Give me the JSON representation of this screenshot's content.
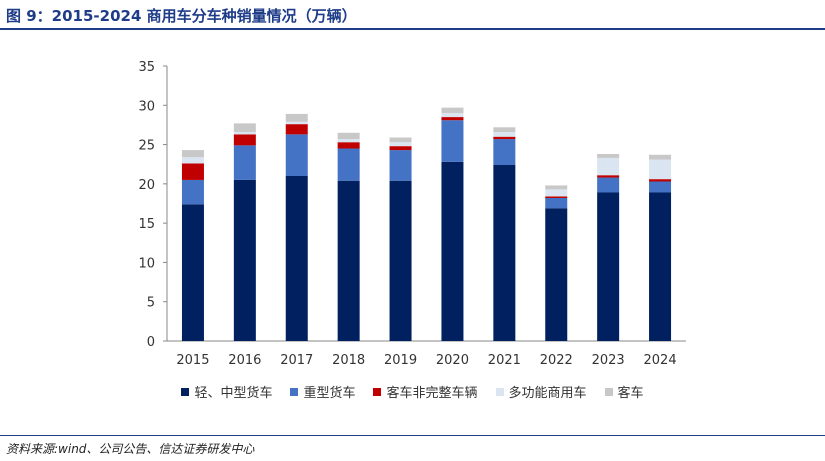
{
  "title": "图 9：2015-2024 商用车分车种销量情况（万辆）",
  "source": "资料来源:wind、公司公告、信达证券研发中心",
  "chart_data": {
    "type": "bar",
    "stacked": true,
    "title": "",
    "xlabel": "",
    "ylabel": "",
    "ylim": [
      0,
      35
    ],
    "yticks": [
      0,
      5,
      10,
      15,
      20,
      25,
      30,
      35
    ],
    "grid": false,
    "legend_position": "bottom",
    "categories": [
      "2015",
      "2016",
      "2017",
      "2018",
      "2019",
      "2020",
      "2021",
      "2022",
      "2023",
      "2024"
    ],
    "series": [
      {
        "name": "轻、中型货车",
        "color": "#002060",
        "values": [
          17.4,
          20.5,
          21.0,
          20.4,
          20.4,
          22.8,
          22.4,
          16.9,
          18.9,
          18.9
        ]
      },
      {
        "name": "重型货车",
        "color": "#4472c4",
        "values": [
          3.1,
          4.4,
          5.3,
          4.1,
          3.9,
          5.3,
          3.3,
          1.3,
          1.9,
          1.4
        ]
      },
      {
        "name": "客车非完整车辆",
        "color": "#c00000",
        "values": [
          2.1,
          1.4,
          1.3,
          0.8,
          0.5,
          0.4,
          0.3,
          0.2,
          0.3,
          0.3
        ]
      },
      {
        "name": "多功能商用车",
        "color": "#dbe5f1",
        "values": [
          0.8,
          0.3,
          0.3,
          0.4,
          0.5,
          0.5,
          0.6,
          0.9,
          2.2,
          2.5
        ]
      },
      {
        "name": "客车",
        "color": "#c8c8c8",
        "values": [
          0.9,
          1.1,
          1.0,
          0.8,
          0.6,
          0.7,
          0.6,
          0.5,
          0.5,
          0.6
        ]
      }
    ]
  }
}
